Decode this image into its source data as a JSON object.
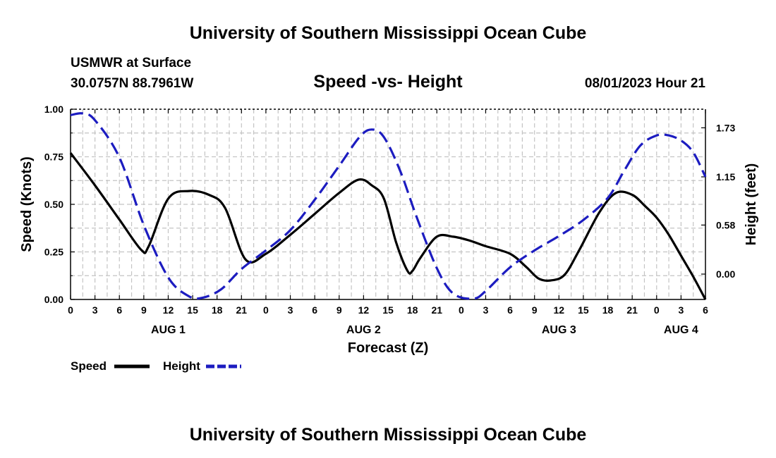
{
  "header": {
    "title": "University of Southern Mississippi Ocean Cube",
    "station": "USMWR at Surface",
    "location": "30.0757N  88.7961W",
    "chart_title": "Speed -vs- Height",
    "datetime": "08/01/2023 Hour 21"
  },
  "footer": {
    "title": "University of Southern Mississippi Ocean Cube"
  },
  "chart_data": {
    "type": "line",
    "title": "Speed -vs- Height",
    "xlabel": "Forecast (Z)",
    "ylabel": "Speed (Knots)",
    "y2label": "Height (feet)",
    "x_range_hours": [
      0,
      78
    ],
    "ylim": [
      0,
      1.0
    ],
    "y2lim": [
      -0.3,
      1.95
    ],
    "grid": true,
    "x_tick_labels": [
      "0",
      "3",
      "6",
      "9",
      "12",
      "15",
      "18",
      "21",
      "0",
      "3",
      "6",
      "9",
      "12",
      "15",
      "18",
      "21",
      "0",
      "3",
      "6",
      "9",
      "12",
      "15",
      "18",
      "21",
      "0",
      "3",
      "6"
    ],
    "y_tick_labels": [
      "0.00",
      "0.25",
      "0.50",
      "0.75",
      "1.00"
    ],
    "y_tick_values": [
      0,
      0.25,
      0.5,
      0.75,
      1.0
    ],
    "y2_tick_labels": [
      "0.00",
      "0.58",
      "1.15",
      "1.73"
    ],
    "y2_tick_values": [
      0,
      0.58,
      1.15,
      1.73
    ],
    "day_labels": [
      {
        "label": "AUG 1",
        "hour": 12
      },
      {
        "label": "AUG 2",
        "hour": 36
      },
      {
        "label": "AUG 3",
        "hour": 60
      },
      {
        "label": "AUG 4",
        "hour": 75
      }
    ],
    "series": [
      {
        "name": "Speed",
        "color": "#000000",
        "axis": "left",
        "x": [
          0,
          3,
          6,
          8.7,
          9.6,
          12,
          14.5,
          17,
          19,
          21.5,
          24,
          27,
          30,
          33,
          35.4,
          37,
          38.5,
          40,
          41.4,
          42,
          43,
          45,
          47,
          49,
          51,
          54,
          56,
          57.5,
          59,
          60.7,
          62.5,
          65,
          67,
          69,
          70.6,
          72,
          73.5,
          75,
          76.5,
          78
        ],
        "values": [
          0.77,
          0.6,
          0.42,
          0.26,
          0.28,
          0.53,
          0.57,
          0.55,
          0.48,
          0.21,
          0.24,
          0.34,
          0.45,
          0.56,
          0.63,
          0.6,
          0.53,
          0.3,
          0.15,
          0.15,
          0.22,
          0.33,
          0.33,
          0.31,
          0.28,
          0.24,
          0.17,
          0.11,
          0.1,
          0.13,
          0.26,
          0.46,
          0.56,
          0.55,
          0.49,
          0.43,
          0.34,
          0.23,
          0.12,
          0.0
        ]
      },
      {
        "name": "Height",
        "color": "#1c1cc0",
        "axis": "right",
        "x": [
          0,
          1.5,
          3,
          6,
          9,
          12,
          14.5,
          16.2,
          18.5,
          21,
          24,
          27,
          30,
          33,
          35.5,
          37,
          38.5,
          40.5,
          42.5,
          45,
          47,
          49.5,
          51,
          54,
          57,
          60,
          63,
          66,
          68,
          70,
          72,
          73.5,
          75,
          76.5,
          78
        ],
        "values": [
          1.88,
          1.9,
          1.82,
          1.38,
          0.58,
          -0.04,
          -0.26,
          -0.28,
          -0.18,
          0.06,
          0.28,
          0.52,
          0.88,
          1.28,
          1.62,
          1.71,
          1.62,
          1.22,
          0.68,
          0.07,
          -0.23,
          -0.29,
          -0.2,
          0.08,
          0.28,
          0.45,
          0.64,
          0.9,
          1.22,
          1.52,
          1.64,
          1.64,
          1.58,
          1.44,
          1.15
        ]
      }
    ],
    "legend": [
      {
        "name": "Speed",
        "color": "#000000"
      },
      {
        "name": "Height",
        "color": "#1c1cc0"
      }
    ],
    "legend_position": "bottom-left"
  }
}
